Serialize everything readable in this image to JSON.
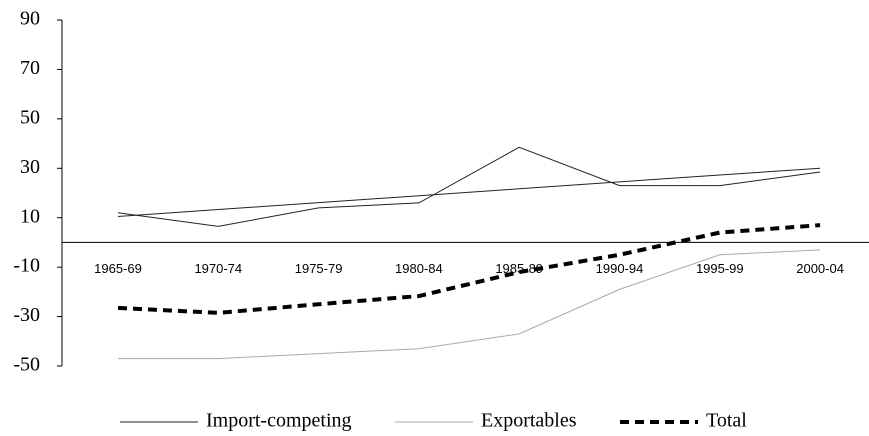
{
  "chart_data": {
    "type": "line",
    "categories": [
      "1965-69",
      "1970-74",
      "1975-79",
      "1980-84",
      "1985-89",
      "1990-94",
      "1995-99",
      "2000-04"
    ],
    "series": [
      {
        "name": "Import-competing",
        "color": "#222222",
        "width": 1,
        "dash": false,
        "values": [
          12,
          6.5,
          14,
          16,
          38.5,
          23,
          23,
          28.5
        ]
      },
      {
        "name": "Exportables",
        "color": "#aaaaaa",
        "width": 1,
        "dash": false,
        "values": [
          -47,
          -47,
          -45,
          -43,
          -37,
          -19,
          -5,
          -3
        ]
      },
      {
        "name": "Total",
        "color": "#000000",
        "width": 4,
        "dash": true,
        "values": [
          -26.5,
          -28.5,
          -25,
          -21.7,
          -12,
          -5,
          4,
          7
        ]
      },
      {
        "color": "#222222",
        "width": 1,
        "dash": false,
        "values": [
          10.5,
          13.3,
          16.1,
          18.9,
          21.7,
          24.5,
          27.3,
          30
        ]
      }
    ],
    "ylim": [
      -50,
      90
    ],
    "yticks": [
      -50,
      -30,
      -10,
      10,
      30,
      50,
      70,
      90
    ],
    "grid": false
  }
}
